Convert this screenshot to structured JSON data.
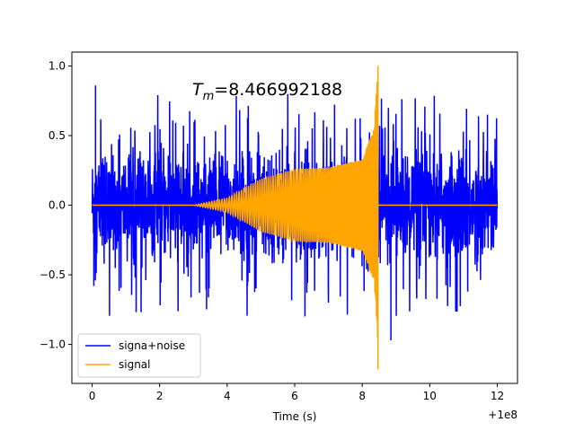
{
  "chart_data": {
    "type": "line",
    "xlabel": "Time (s)",
    "ylabel": "",
    "x_offset_label": "+1e8",
    "xlim": [
      -0.6,
      12.6
    ],
    "ylim": [
      -1.28,
      1.1
    ],
    "x_ticks": [
      0,
      2,
      4,
      6,
      8,
      10,
      12
    ],
    "y_ticks": [
      -1.0,
      -0.5,
      0.0,
      0.5,
      1.0
    ],
    "x_tick_labels": [
      "0",
      "2",
      "4",
      "6",
      "8",
      "10",
      "12"
    ],
    "y_tick_labels": [
      "−1.0",
      "−0.5",
      "0.0",
      "0.5",
      "1.0"
    ],
    "annotation": {
      "prefix": "T",
      "subscript": "m",
      "value": "=8.466992188",
      "x": 3.0,
      "y": 0.86
    },
    "legend": {
      "placement": "lower-left"
    },
    "merger_time": 8.467,
    "series": [
      {
        "name": "signa+noise",
        "color": "#0000ff",
        "x_range": [
          0,
          12
        ],
        "noise_envelope": {
          "typical": 0.3,
          "peak_max": 0.86,
          "peak_min": -0.97
        }
      },
      {
        "name": "signal",
        "color": "#ffa500",
        "x_range": [
          0,
          12
        ],
        "envelope": [
          {
            "x": 3.0,
            "amp": 0.0
          },
          {
            "x": 4.0,
            "amp": 0.05
          },
          {
            "x": 5.0,
            "amp": 0.19
          },
          {
            "x": 6.0,
            "amp": 0.26
          },
          {
            "x": 7.0,
            "amp": 0.27
          },
          {
            "x": 8.0,
            "amp": 0.33
          },
          {
            "x": 8.35,
            "amp": 0.55
          },
          {
            "x": 8.467,
            "amp": 1.0
          }
        ],
        "peak_max": 1.0,
        "peak_min": -1.18
      }
    ]
  }
}
